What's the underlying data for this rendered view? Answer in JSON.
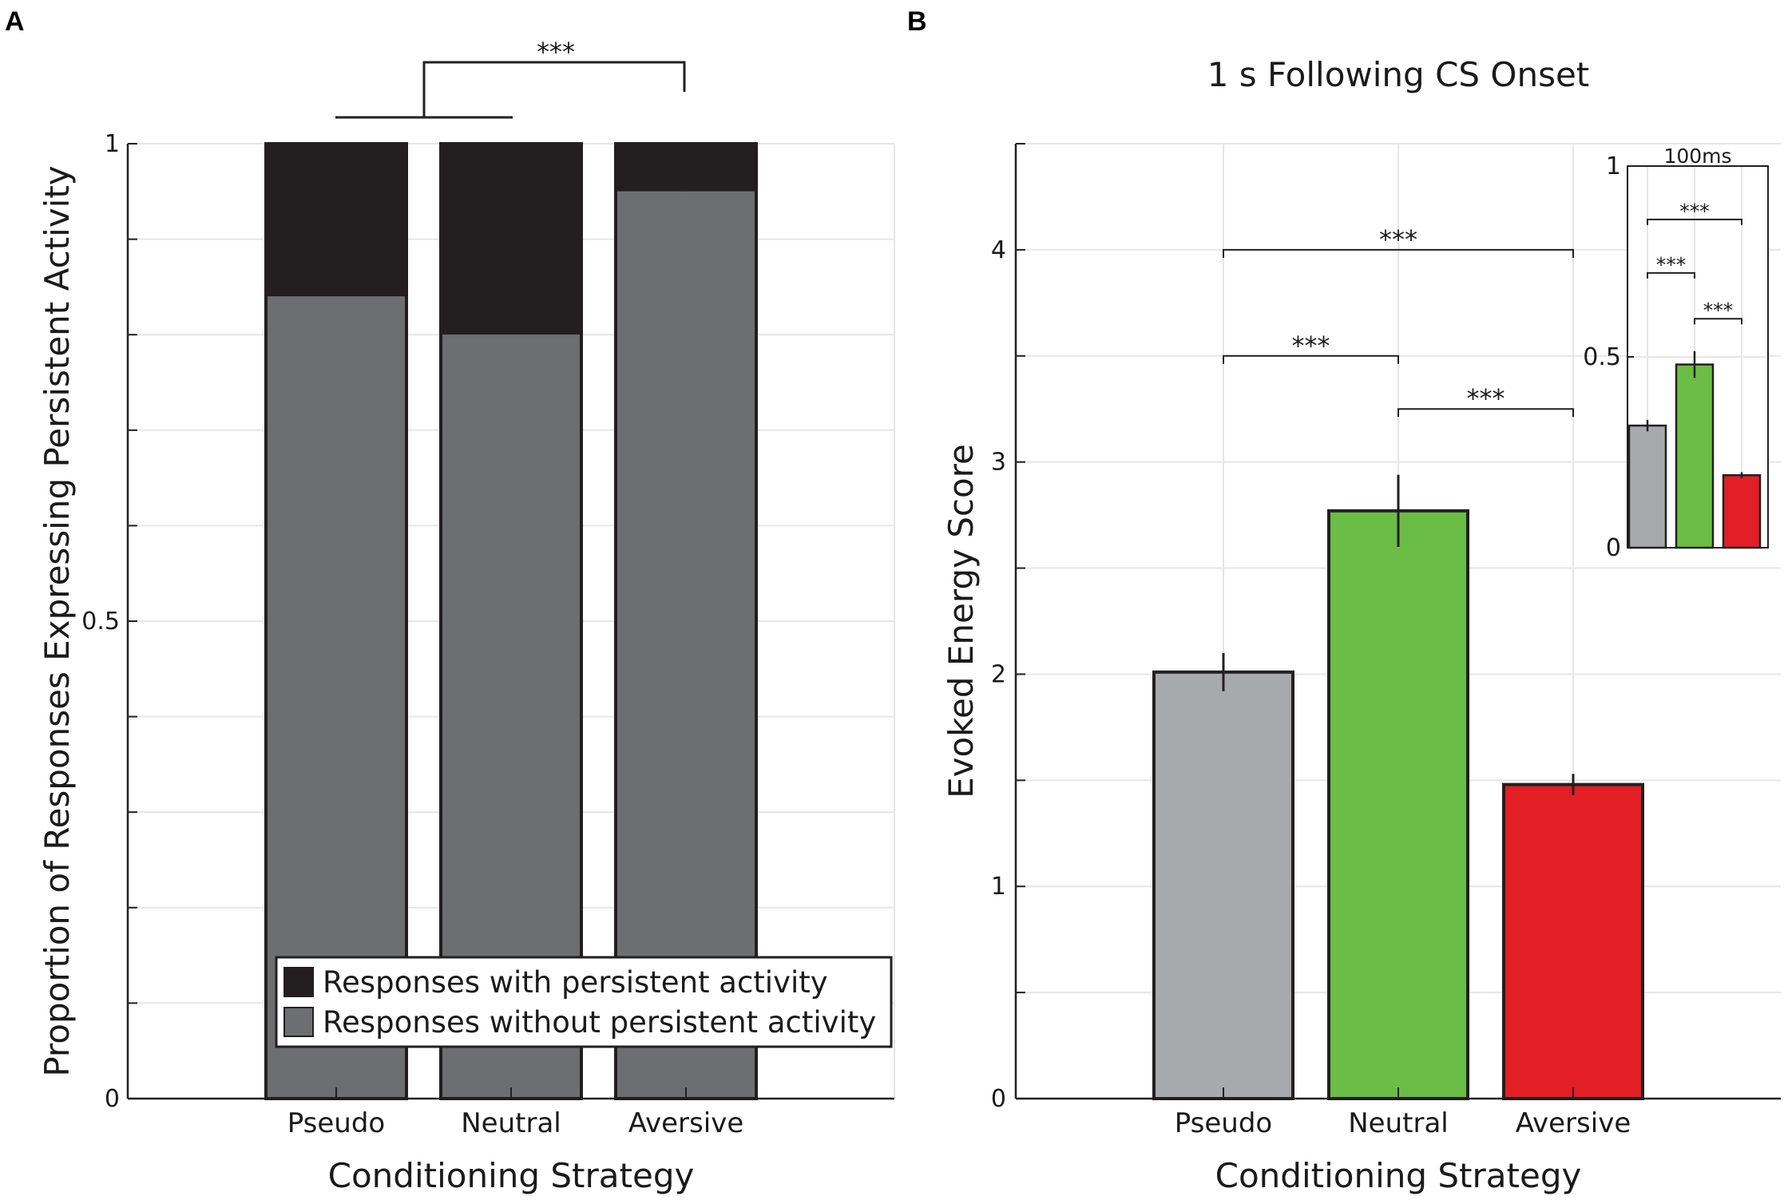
{
  "panels": {
    "a_label": "A",
    "b_label": "B"
  },
  "chart_data": [
    {
      "id": "A",
      "type": "bar",
      "stacked": true,
      "title": "",
      "xlabel": "Conditioning Strategy",
      "ylabel": "Proportion of Responses Expressing Persistent Activity",
      "categories": [
        "Pseudo",
        "Neutral",
        "Aversive"
      ],
      "series": [
        {
          "name": "Responses without persistent activity",
          "values": [
            0.84,
            0.8,
            0.95
          ],
          "color": "#6d6e70"
        },
        {
          "name": "Responses with persistent activity",
          "values": [
            0.16,
            0.2,
            0.05
          ],
          "color": "#231f20"
        }
      ],
      "ylim": [
        0,
        1
      ],
      "yticks": [
        0,
        0.5,
        1
      ],
      "ytick_labels": [
        "0",
        "0.5",
        "1"
      ],
      "ygrid_step": 0.1,
      "legend": "bottom-right",
      "significance": [
        {
          "from": "Pseudo+Neutral",
          "to": "Aversive",
          "label": "***"
        }
      ]
    },
    {
      "id": "B",
      "type": "bar",
      "title": "1 s Following CS Onset",
      "xlabel": "Conditioning Strategy",
      "ylabel": "Evoked Energy Score",
      "categories": [
        "Pseudo",
        "Neutral",
        "Aversive"
      ],
      "values": [
        2.01,
        2.77,
        1.48
      ],
      "errors": [
        0.09,
        0.17,
        0.05
      ],
      "colors": [
        "#a7a9ac",
        "#6abd45",
        "#e31e24"
      ],
      "ylim": [
        0,
        4.5
      ],
      "yticks": [
        0,
        1,
        2,
        3,
        4
      ],
      "ytick_labels": [
        "0",
        "1",
        "2",
        "3",
        "4"
      ],
      "significance": [
        {
          "a": 0,
          "b": 2,
          "y": 4.0,
          "label": "***"
        },
        {
          "a": 0,
          "b": 1,
          "y": 3.5,
          "label": "***"
        },
        {
          "a": 1,
          "b": 2,
          "y": 3.25,
          "label": "***"
        }
      ],
      "inset": {
        "title": "100ms",
        "categories": [
          "Pseudo",
          "Neutral",
          "Aversive"
        ],
        "values": [
          0.32,
          0.48,
          0.19
        ],
        "errors": [
          0.015,
          0.035,
          0.008
        ],
        "colors": [
          "#a7a9ac",
          "#6abd45",
          "#e31e24"
        ],
        "ylim": [
          0,
          1
        ],
        "yticks": [
          0,
          0.5,
          1
        ],
        "ytick_labels": [
          "0",
          "0.5",
          "1"
        ],
        "significance": [
          {
            "a": 0,
            "b": 2,
            "y": 0.86,
            "label": "***"
          },
          {
            "a": 0,
            "b": 1,
            "y": 0.72,
            "label": "***"
          },
          {
            "a": 1,
            "b": 2,
            "y": 0.6,
            "label": "***"
          }
        ]
      }
    }
  ]
}
